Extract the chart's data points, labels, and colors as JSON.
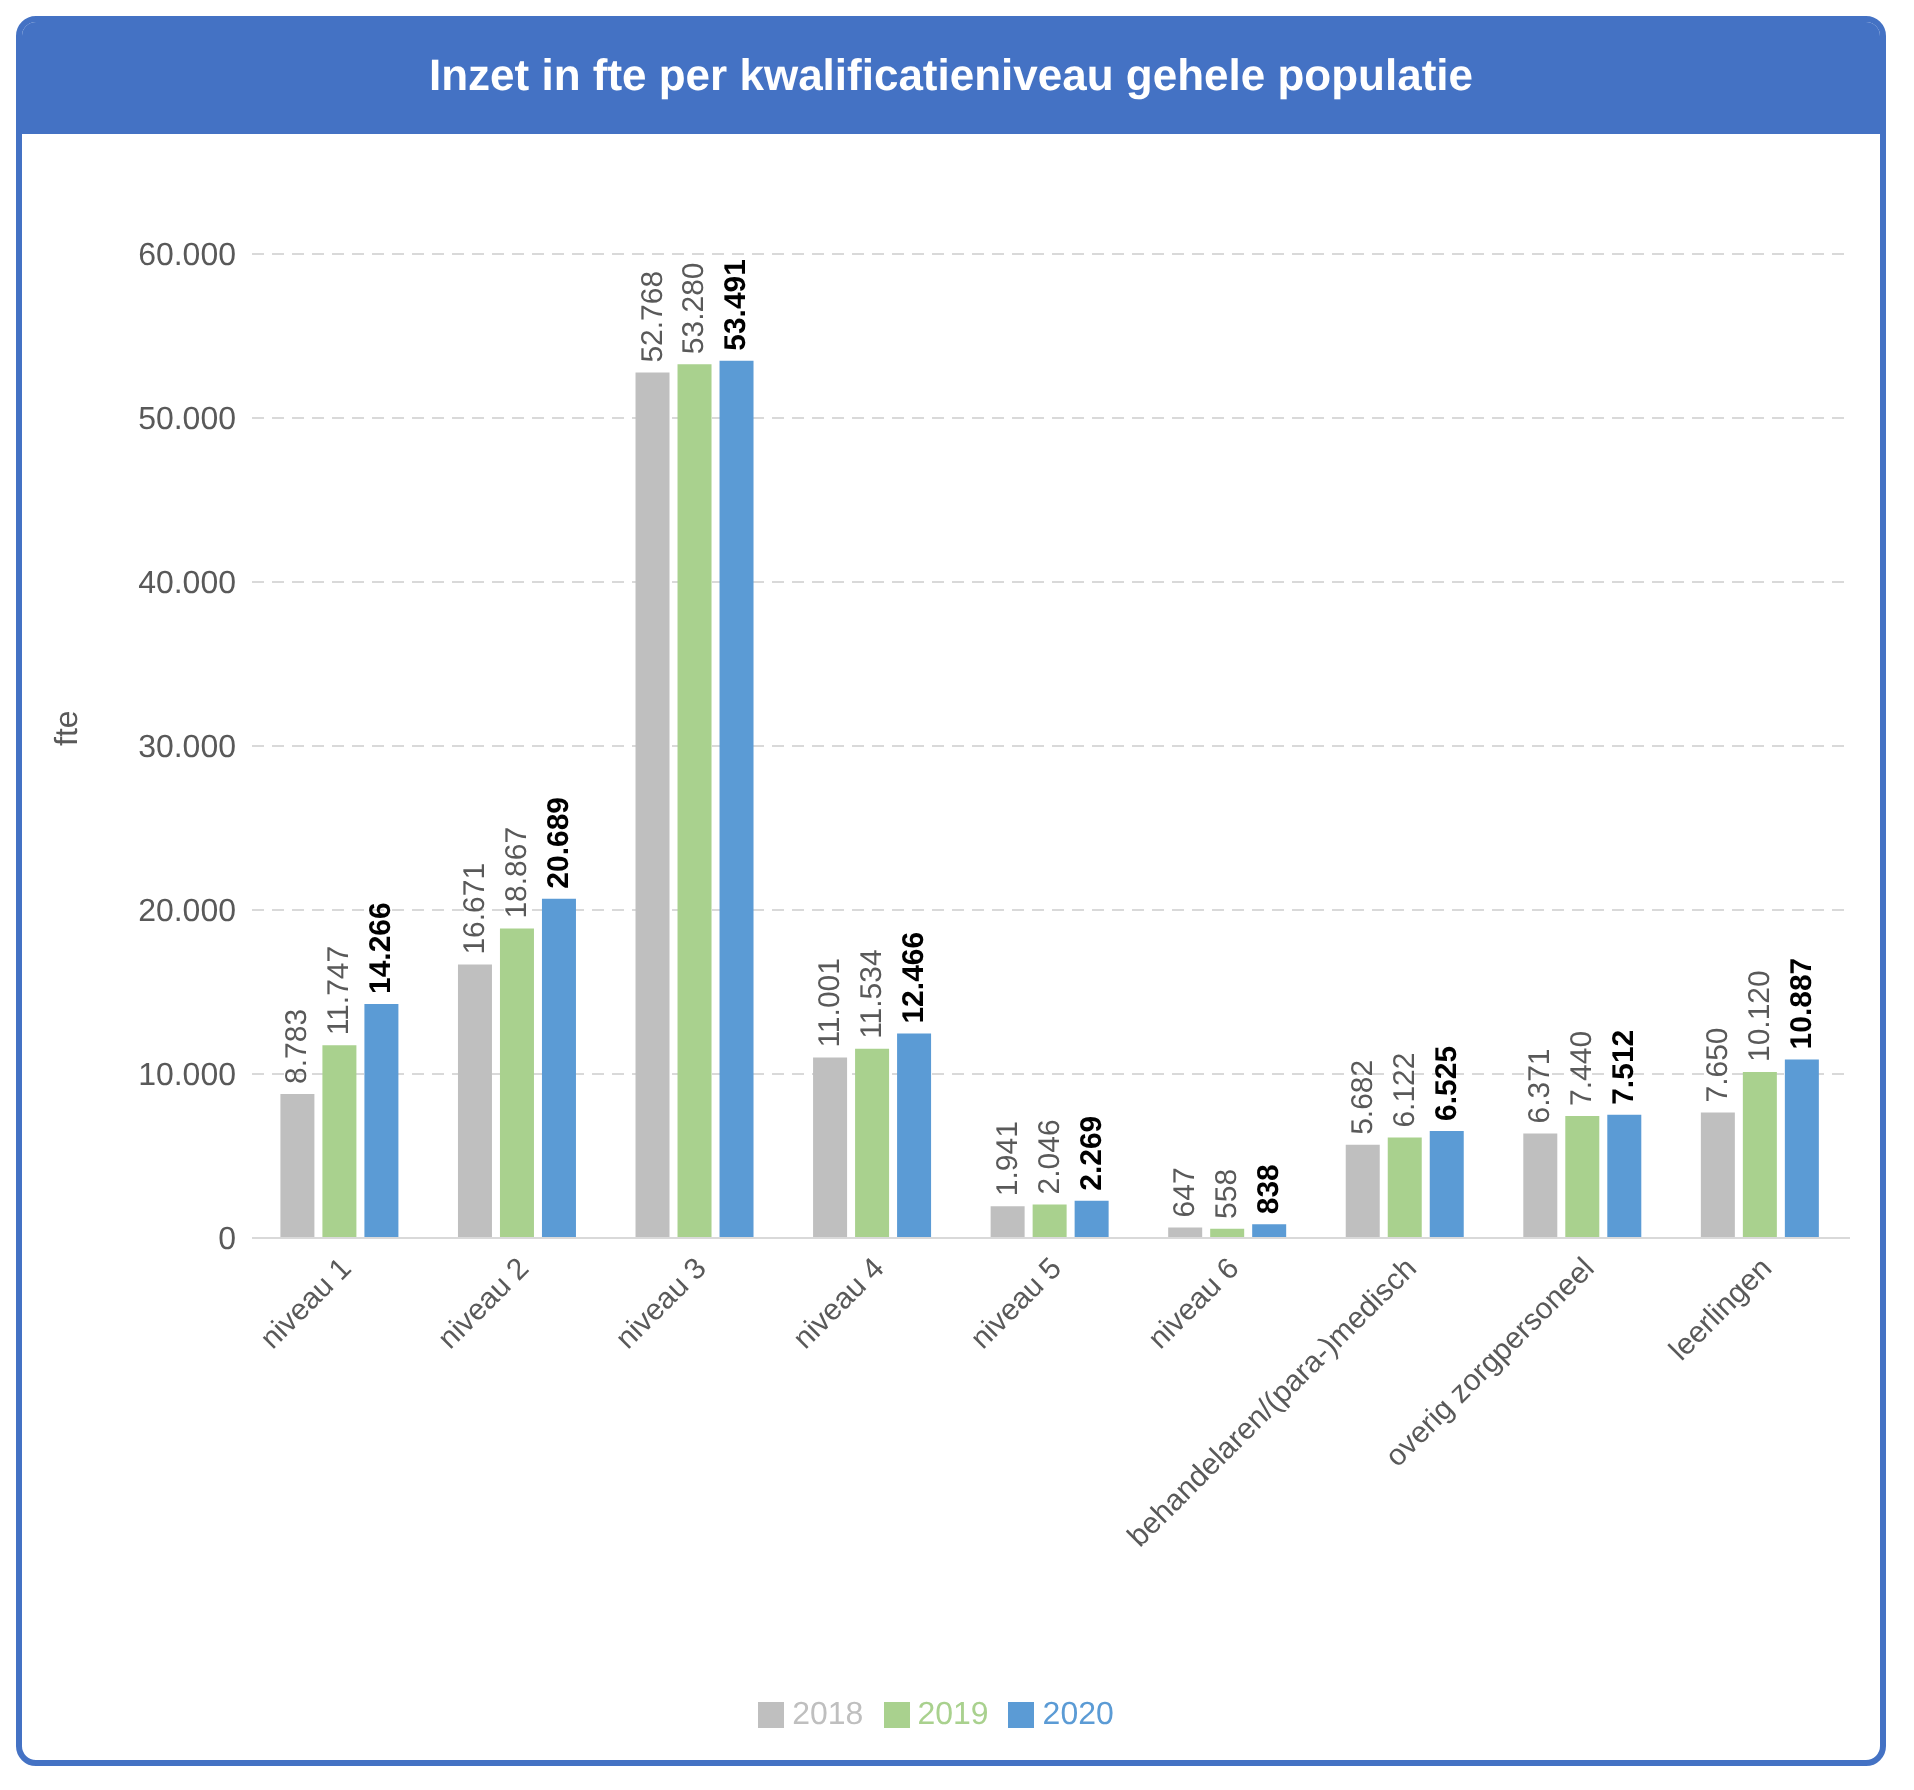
{
  "chart_data": {
    "type": "bar",
    "title": "Inzet in fte per kwalificatieniveau gehele populatie",
    "ylabel": "fte",
    "categories": [
      "niveau 1",
      "niveau 2",
      "niveau 3",
      "niveau 4",
      "niveau 5",
      "niveau 6",
      "behandelaren/(para-)medisch",
      "overig zorgpersoneel",
      "leerlingen"
    ],
    "series": [
      {
        "name": "2018",
        "color": "#bfbfbf",
        "values": [
          8783,
          16671,
          52768,
          11001,
          1941,
          647,
          5682,
          6371,
          7650
        ],
        "value_labels": [
          "8.783",
          "16.671",
          "52.768",
          "11.001",
          "1.941",
          "647",
          "5.682",
          "6.371",
          "7.650"
        ]
      },
      {
        "name": "2019",
        "color": "#a9d18e",
        "values": [
          11747,
          18867,
          53280,
          11534,
          2046,
          558,
          6122,
          7440,
          10120
        ],
        "value_labels": [
          "11.747",
          "18.867",
          "53.280",
          "11.534",
          "2.046",
          "558",
          "6.122",
          "7.440",
          "10.120"
        ]
      },
      {
        "name": "2020",
        "color": "#5b9bd5",
        "values": [
          14266,
          20689,
          53491,
          12466,
          2269,
          838,
          6525,
          7512,
          10887
        ],
        "value_labels": [
          "14.266",
          "20.689",
          "53.491",
          "12.466",
          "2.269",
          "838",
          "6.525",
          "7.512",
          "10.887"
        ]
      }
    ],
    "ylim": [
      0,
      60000
    ],
    "yticks": [
      {
        "value": 0,
        "label": "0"
      },
      {
        "value": 10000,
        "label": "10.000"
      },
      {
        "value": 20000,
        "label": "20.000"
      },
      {
        "value": 30000,
        "label": "30.000"
      },
      {
        "value": 40000,
        "label": "40.000"
      },
      {
        "value": 50000,
        "label": "50.000"
      },
      {
        "value": 60000,
        "label": "60.000"
      }
    ],
    "grid": "y",
    "legend": "bottom"
  }
}
